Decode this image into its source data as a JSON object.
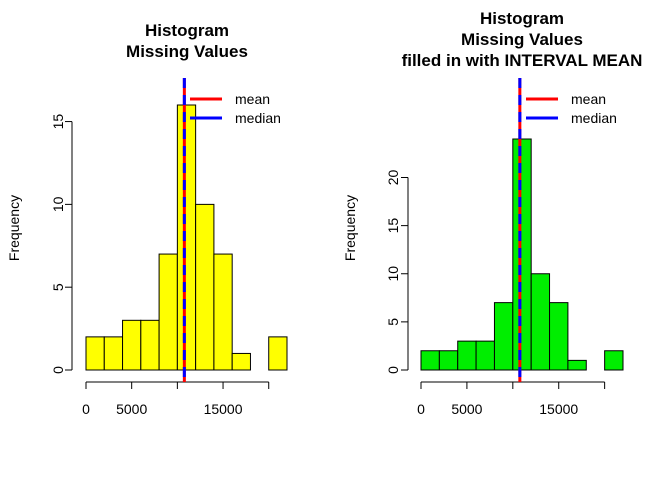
{
  "chart_data": [
    {
      "type": "bar",
      "title_lines": [
        "Histogram",
        "Missing Values"
      ],
      "xlabel": "",
      "ylabel": "Frequency",
      "bar_color": "#ffff00",
      "bins": [
        {
          "x0": 0,
          "x1": 2000,
          "count": 2
        },
        {
          "x0": 2000,
          "x1": 4000,
          "count": 2
        },
        {
          "x0": 4000,
          "x1": 6000,
          "count": 3
        },
        {
          "x0": 6000,
          "x1": 8000,
          "count": 3
        },
        {
          "x0": 8000,
          "x1": 10000,
          "count": 7
        },
        {
          "x0": 10000,
          "x1": 12000,
          "count": 16
        },
        {
          "x0": 12000,
          "x1": 14000,
          "count": 10
        },
        {
          "x0": 14000,
          "x1": 16000,
          "count": 7
        },
        {
          "x0": 16000,
          "x1": 18000,
          "count": 1
        },
        {
          "x0": 18000,
          "x1": 20000,
          "count": 0
        },
        {
          "x0": 20000,
          "x1": 22000,
          "count": 2
        }
      ],
      "xlim": [
        0,
        22000
      ],
      "ylim": [
        0,
        16
      ],
      "x_ticks": [
        {
          "value": 0,
          "label": "0"
        },
        {
          "value": 5000,
          "label": "5000"
        },
        {
          "value": 10000,
          "label": ""
        },
        {
          "value": 15000,
          "label": "15000"
        },
        {
          "value": 20000,
          "label": ""
        }
      ],
      "y_ticks": [
        {
          "value": 0,
          "label": "0"
        },
        {
          "value": 5,
          "label": "5"
        },
        {
          "value": 10,
          "label": "10"
        },
        {
          "value": 15,
          "label": "15"
        }
      ],
      "mean": 10766,
      "median": 10765,
      "legend": [
        {
          "label": "mean",
          "color": "#ff0000"
        },
        {
          "label": "median",
          "color": "#0000ff"
        }
      ],
      "legend_position": "top-right"
    },
    {
      "type": "bar",
      "title_lines": [
        "Histogram",
        "Missing Values",
        "filled in with INTERVAL MEAN"
      ],
      "xlabel": "",
      "ylabel": "Frequency",
      "bar_color": "#00ee00",
      "bins": [
        {
          "x0": 0,
          "x1": 2000,
          "count": 2
        },
        {
          "x0": 2000,
          "x1": 4000,
          "count": 2
        },
        {
          "x0": 4000,
          "x1": 6000,
          "count": 3
        },
        {
          "x0": 6000,
          "x1": 8000,
          "count": 3
        },
        {
          "x0": 8000,
          "x1": 10000,
          "count": 7
        },
        {
          "x0": 10000,
          "x1": 12000,
          "count": 24
        },
        {
          "x0": 12000,
          "x1": 14000,
          "count": 10
        },
        {
          "x0": 14000,
          "x1": 16000,
          "count": 7
        },
        {
          "x0": 16000,
          "x1": 18000,
          "count": 1
        },
        {
          "x0": 18000,
          "x1": 20000,
          "count": 0
        },
        {
          "x0": 20000,
          "x1": 22000,
          "count": 2
        }
      ],
      "xlim": [
        0,
        22000
      ],
      "ylim": [
        0,
        24
      ],
      "x_ticks": [
        {
          "value": 0,
          "label": "0"
        },
        {
          "value": 5000,
          "label": "5000"
        },
        {
          "value": 10000,
          "label": ""
        },
        {
          "value": 15000,
          "label": "15000"
        },
        {
          "value": 20000,
          "label": ""
        }
      ],
      "y_ticks": [
        {
          "value": 0,
          "label": "0"
        },
        {
          "value": 5,
          "label": "5"
        },
        {
          "value": 10,
          "label": "10"
        },
        {
          "value": 15,
          "label": "15"
        },
        {
          "value": 20,
          "label": "20"
        }
      ],
      "mean": 10766,
      "median": 10766,
      "legend": [
        {
          "label": "mean",
          "color": "#ff0000"
        },
        {
          "label": "median",
          "color": "#0000ff"
        }
      ],
      "legend_position": "top-right"
    }
  ]
}
